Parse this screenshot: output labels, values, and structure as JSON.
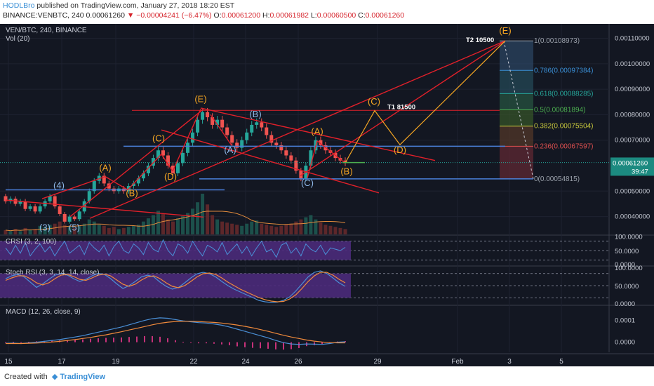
{
  "header": {
    "author": "HODLBro",
    "published": " published on TradingView.com, January 27, 2018 18:20 EST",
    "symbol": "BINANCE:VENBTC, 240",
    "close_value": "0.00061260",
    "arrow": "▼",
    "change": "−0.00004241 (−6.47%)",
    "o_label": "O:",
    "o_value": "0.00061200",
    "h_label": "H:",
    "h_value": "0.00061982",
    "l_label": "L:",
    "l_value": "0.00060500",
    "c_label": "C:",
    "c_value": "0.00061260"
  },
  "footer": {
    "created_with": "Created with",
    "brand": "TradingView"
  },
  "colors": {
    "background": "#131722",
    "candle_up": "#26a69a",
    "candle_down": "#ef5350",
    "trend_red": "#e0202a",
    "wave_orange": "#f5a623",
    "wave_blue": "#8fb8e8",
    "level_blue": "#4a7fd8",
    "osc_band": "#4b2a7a"
  },
  "chart_data": [
    {
      "type": "candlestick",
      "title": "VEN/BTC, 240, BINANCE",
      "volume_label": "Vol (20)",
      "x_ticks": [
        "15",
        "17",
        "19",
        "22",
        "24",
        "26",
        "29",
        "Feb",
        "3",
        "5"
      ],
      "y_ticks": [
        "0.00110000",
        "0.00100000",
        "0.00090000",
        "0.00080000",
        "0.00070000",
        "0.00050000",
        "0.00040000"
      ],
      "ylim": [
        0.00033,
        0.00114
      ],
      "last_price": "0.00061260",
      "countdown": "39:47",
      "fib_levels": [
        {
          "label": "1(0.00108973)",
          "value": 0.00108973
        },
        {
          "label": "0.786(0.00097384)",
          "value": 0.00097384
        },
        {
          "label": "0.618(0.00088285)",
          "value": 0.00088285
        },
        {
          "label": "0.5(0.00081894)",
          "value": 0.00081894
        },
        {
          "label": "0.382(0.00075504)",
          "value": 0.00075504
        },
        {
          "label": "0.236(0.00067597)",
          "value": 0.00067597
        },
        {
          "label": "0(0.00054815)",
          "value": 0.00054815
        }
      ],
      "targets": [
        "T2 10500",
        "T1 81500"
      ],
      "wave_labels": {
        "orange": [
          "(A)",
          "(B)",
          "(C)",
          "(D)",
          "(E)",
          "(A)",
          "(B)",
          "(C)",
          "(D)",
          "(E)"
        ],
        "blue": [
          "(4)",
          "(5)",
          "(3)",
          "(A)",
          "(B)",
          "(C)"
        ]
      },
      "candles": [
        [
          0.00048,
          0.00046
        ],
        [
          0.00046,
          0.00047
        ],
        [
          0.00047,
          0.00045
        ],
        [
          0.00045,
          0.00046
        ],
        [
          0.00046,
          0.00043
        ],
        [
          0.00043,
          0.00044
        ],
        [
          0.00044,
          0.00042
        ],
        [
          0.00042,
          0.00044
        ],
        [
          0.00044,
          0.00046
        ],
        [
          0.00046,
          0.00048
        ],
        [
          0.00048,
          0.00044
        ],
        [
          0.00044,
          0.00041
        ],
        [
          0.00041,
          0.00038
        ],
        [
          0.00038,
          0.0004
        ],
        [
          0.0004,
          0.00039
        ],
        [
          0.00039,
          0.00042
        ],
        [
          0.00042,
          0.00046
        ],
        [
          0.00046,
          0.0005
        ],
        [
          0.0005,
          0.00054
        ],
        [
          0.00054,
          0.00056
        ],
        [
          0.00056,
          0.00053
        ],
        [
          0.00053,
          0.00051
        ],
        [
          0.00051,
          0.0005
        ],
        [
          0.0005,
          0.00051
        ],
        [
          0.00051,
          0.0005
        ],
        [
          0.0005,
          0.00052
        ],
        [
          0.00052,
          0.00053
        ],
        [
          0.00053,
          0.00055
        ],
        [
          0.00055,
          0.00057
        ],
        [
          0.00057,
          0.0006
        ],
        [
          0.0006,
          0.00063
        ],
        [
          0.00063,
          0.00066
        ],
        [
          0.00066,
          0.00064
        ],
        [
          0.00064,
          0.0006
        ],
        [
          0.0006,
          0.00057
        ],
        [
          0.00057,
          0.00061
        ],
        [
          0.00061,
          0.00065
        ],
        [
          0.00065,
          0.00069
        ],
        [
          0.00069,
          0.00073
        ],
        [
          0.00073,
          0.00078
        ],
        [
          0.00078,
          0.00081
        ],
        [
          0.00081,
          0.00079
        ],
        [
          0.00079,
          0.00076
        ],
        [
          0.00076,
          0.00078
        ],
        [
          0.00078,
          0.00075
        ],
        [
          0.00075,
          0.00072
        ],
        [
          0.00072,
          0.00069
        ],
        [
          0.00069,
          0.00067
        ],
        [
          0.00067,
          0.0007
        ],
        [
          0.0007,
          0.00073
        ],
        [
          0.00073,
          0.00076
        ],
        [
          0.00076,
          0.00077
        ],
        [
          0.00077,
          0.00075
        ],
        [
          0.00075,
          0.00072
        ],
        [
          0.00072,
          0.00069
        ],
        [
          0.00069,
          0.00068
        ],
        [
          0.00068,
          0.00066
        ],
        [
          0.00066,
          0.00064
        ],
        [
          0.00064,
          0.00062
        ],
        [
          0.00062,
          0.00058
        ],
        [
          0.00058,
          0.00055
        ],
        [
          0.00055,
          0.0006
        ],
        [
          0.0006,
          0.00066
        ],
        [
          0.00066,
          0.0007
        ],
        [
          0.0007,
          0.00068
        ],
        [
          0.00068,
          0.00066
        ],
        [
          0.00066,
          0.00065
        ],
        [
          0.00065,
          0.00063
        ],
        [
          0.00063,
          0.00062
        ],
        [
          0.00062,
          0.00061
        ]
      ],
      "volume": [
        4,
        3,
        5,
        3,
        6,
        4,
        5,
        8,
        7,
        9,
        10,
        12,
        9,
        7,
        6,
        8,
        10,
        14,
        12,
        9,
        8,
        6,
        7,
        5,
        6,
        7,
        8,
        9,
        12,
        15,
        18,
        22,
        19,
        14,
        12,
        15,
        17,
        20,
        24,
        30,
        38,
        28,
        18,
        14,
        12,
        11,
        10,
        9,
        8,
        10,
        12,
        13,
        10,
        9,
        8,
        7,
        8,
        9,
        10,
        12,
        14,
        16,
        18,
        14,
        11,
        9,
        8,
        7,
        6,
        5
      ]
    },
    {
      "type": "line",
      "title": "CRSI (3, 2, 100)",
      "y_ticks": [
        "100.0000",
        "50.0000",
        "0.0000"
      ],
      "ylim": [
        0,
        100
      ],
      "values": [
        60,
        35,
        70,
        40,
        80,
        30,
        55,
        75,
        45,
        65,
        30,
        60,
        85,
        40,
        55,
        70,
        35,
        80,
        60,
        45,
        70,
        30,
        65,
        85,
        50,
        40,
        75,
        60,
        35,
        80,
        55,
        45,
        90,
        50,
        30,
        75,
        65,
        40,
        85,
        55,
        30,
        70,
        60,
        45,
        80,
        35,
        55,
        75,
        40,
        65,
        30,
        60,
        85,
        45,
        55,
        25,
        70,
        80,
        40,
        60,
        30,
        75,
        55,
        45,
        70,
        35,
        60,
        55,
        50,
        62
      ]
    },
    {
      "type": "line",
      "title": "Stoch RSI (3, 3, 14, 14, close)",
      "y_ticks": [
        "100.0000",
        "50.0000",
        "0.0000"
      ],
      "ylim": [
        0,
        100
      ],
      "series": [
        {
          "values": [
            70,
            78,
            82,
            75,
            60,
            45,
            55,
            68,
            80,
            85,
            80,
            70,
            62,
            68,
            78,
            85,
            82,
            70,
            55,
            42,
            50,
            62,
            75,
            80,
            75,
            60,
            48,
            40,
            45,
            58,
            72,
            84,
            88,
            84,
            75,
            62,
            50,
            40,
            32,
            24,
            16,
            8,
            4,
            2,
            3,
            8,
            18,
            35,
            55,
            75,
            88,
            92,
            85,
            72,
            58,
            48
          ]
        },
        {
          "values": [
            65,
            72,
            78,
            78,
            70,
            58,
            52,
            58,
            70,
            80,
            82,
            76,
            68,
            65,
            72,
            80,
            83,
            78,
            66,
            54,
            48,
            54,
            66,
            75,
            78,
            70,
            58,
            48,
            44,
            50,
            62,
            75,
            84,
            86,
            82,
            72,
            60,
            50,
            40,
            32,
            24,
            16,
            10,
            6,
            4,
            5,
            12,
            24,
            42,
            62,
            78,
            88,
            88,
            80,
            68,
            58
          ]
        }
      ]
    },
    {
      "type": "line",
      "title": "MACD (12, 26, close, 9)",
      "y_ticks": [
        "0.0001",
        "0.0000"
      ],
      "ylim": [
        -4e-05,
        0.00016
      ],
      "series": [
        {
          "values": [
            -5e-06,
            -4e-06,
            -6e-06,
            -3e-06,
            0,
            4e-06,
            8e-06,
            1.2e-05,
            1.8e-05,
            2.4e-05,
            3e-05,
            3.8e-05,
            4.6e-05,
            5.4e-05,
            6.2e-05,
            7e-05,
            8e-05,
            9e-05,
            0.0001,
            0.000108,
            0.000112,
            0.00011,
            0.000104,
            9.8e-05,
            9.4e-05,
            9e-05,
            8.8e-05,
            8.4e-05,
            7.8e-05,
            7e-05,
            6e-05,
            5e-05,
            4e-05,
            3e-05,
            2e-05,
            8e-06,
            -2e-06,
            -8e-06,
            -1e-05,
            -8e-06,
            -9e-06,
            -1e-05,
            -6e-06,
            0,
            2e-06
          ]
        },
        {
          "values": [
            -6e-06,
            -6e-06,
            -6e-06,
            -5e-06,
            -4e-06,
            -2e-06,
            1e-06,
            4e-06,
            8e-06,
            1.2e-05,
            1.7e-05,
            2.2e-05,
            2.8e-05,
            3.4e-05,
            4.1e-05,
            4.8e-05,
            5.6e-05,
            6.4e-05,
            7.2e-05,
            8e-05,
            8.7e-05,
            9.2e-05,
            9.5e-05,
            9.6e-05,
            9.6e-05,
            9.5e-05,
            9.3e-05,
            9.1e-05,
            8.8e-05,
            8.4e-05,
            7.9e-05,
            7.3e-05,
            6.6e-05,
            5.8e-05,
            5e-05,
            4.1e-05,
            3.2e-05,
            2.4e-05,
            1.7e-05,
            1e-05,
            5e-06,
            1e-06,
            -2e-06,
            -3e-06,
            -3e-06
          ]
        }
      ],
      "histogram": [
        1e-06,
        2e-06,
        1e-06,
        2e-06,
        4e-06,
        6e-06,
        7e-06,
        8e-06,
        1e-05,
        1.2e-05,
        1.3e-05,
        1.6e-05,
        1.8e-05,
        2e-05,
        2.1e-05,
        2.2e-05,
        2.4e-05,
        2.6e-05,
        2.8e-05,
        2.8e-05,
        2.5e-05,
        1.8e-05,
        9e-06,
        2e-06,
        -2e-06,
        -5e-06,
        -5e-06,
        -7e-06,
        -1e-05,
        -1.4e-05,
        -1.9e-05,
        -2.3e-05,
        -2.6e-05,
        -2.8e-05,
        -3e-05,
        -3.3e-05,
        -3.4e-05,
        -3.2e-05,
        -2.7e-05,
        -1.8e-05,
        -1.4e-05,
        -1.1e-05,
        -4e-06,
        3e-06,
        5e-06
      ]
    }
  ]
}
